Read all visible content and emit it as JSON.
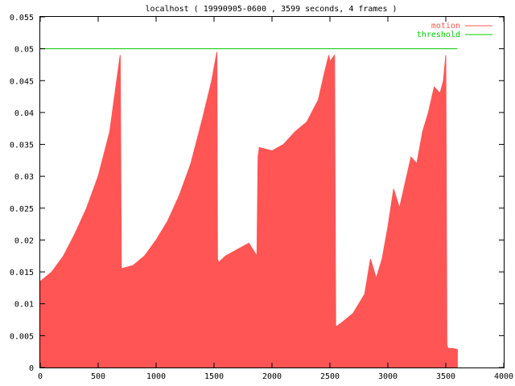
{
  "chart_data": {
    "type": "area",
    "title": "localhost ( 19990905-0600 , 3599 seconds, 4 frames )",
    "xlabel": "",
    "ylabel": "",
    "xlim": [
      0,
      4000
    ],
    "ylim": [
      0,
      0.055
    ],
    "x_ticks": [
      "0",
      "500",
      "1000",
      "1500",
      "2000",
      "2500",
      "3000",
      "3500",
      "4000"
    ],
    "y_ticks": [
      "0",
      "0.005",
      "0.01",
      "0.015",
      "0.02",
      "0.025",
      "0.03",
      "0.035",
      "0.04",
      "0.045",
      "0.05",
      "0.055"
    ],
    "legend_placement": "top-right",
    "grid": false,
    "series": [
      {
        "name": "motion",
        "color": "#ff5555",
        "x": [
          0,
          100,
          200,
          300,
          400,
          500,
          600,
          660,
          690,
          700,
          800,
          900,
          1000,
          1100,
          1200,
          1300,
          1400,
          1480,
          1525,
          1530,
          1540,
          1600,
          1700,
          1800,
          1870,
          1880,
          1890,
          2000,
          2100,
          2200,
          2300,
          2400,
          2450,
          2490,
          2500,
          2540,
          2550,
          2560,
          2600,
          2700,
          2800,
          2850,
          2900,
          2950,
          3000,
          3050,
          3100,
          3150,
          3200,
          3250,
          3300,
          3350,
          3400,
          3450,
          3480,
          3500,
          3510,
          3520,
          3560,
          3600
        ],
        "y": [
          0.0135,
          0.015,
          0.0175,
          0.021,
          0.025,
          0.03,
          0.037,
          0.045,
          0.049,
          0.0155,
          0.016,
          0.0175,
          0.02,
          0.023,
          0.027,
          0.032,
          0.039,
          0.045,
          0.0495,
          0.017,
          0.0165,
          0.0175,
          0.0185,
          0.0195,
          0.0175,
          0.033,
          0.0345,
          0.034,
          0.035,
          0.037,
          0.0385,
          0.042,
          0.046,
          0.049,
          0.048,
          0.049,
          0.0065,
          0.0065,
          0.007,
          0.0085,
          0.0115,
          0.017,
          0.014,
          0.017,
          0.022,
          0.028,
          0.025,
          0.029,
          0.033,
          0.032,
          0.037,
          0.04,
          0.044,
          0.043,
          0.045,
          0.049,
          0.0035,
          0.003,
          0.003,
          0.0028
        ]
      },
      {
        "name": "threshold",
        "color": "#00cc00",
        "x": [
          0,
          3599
        ],
        "y": [
          0.05,
          0.05
        ]
      }
    ]
  }
}
